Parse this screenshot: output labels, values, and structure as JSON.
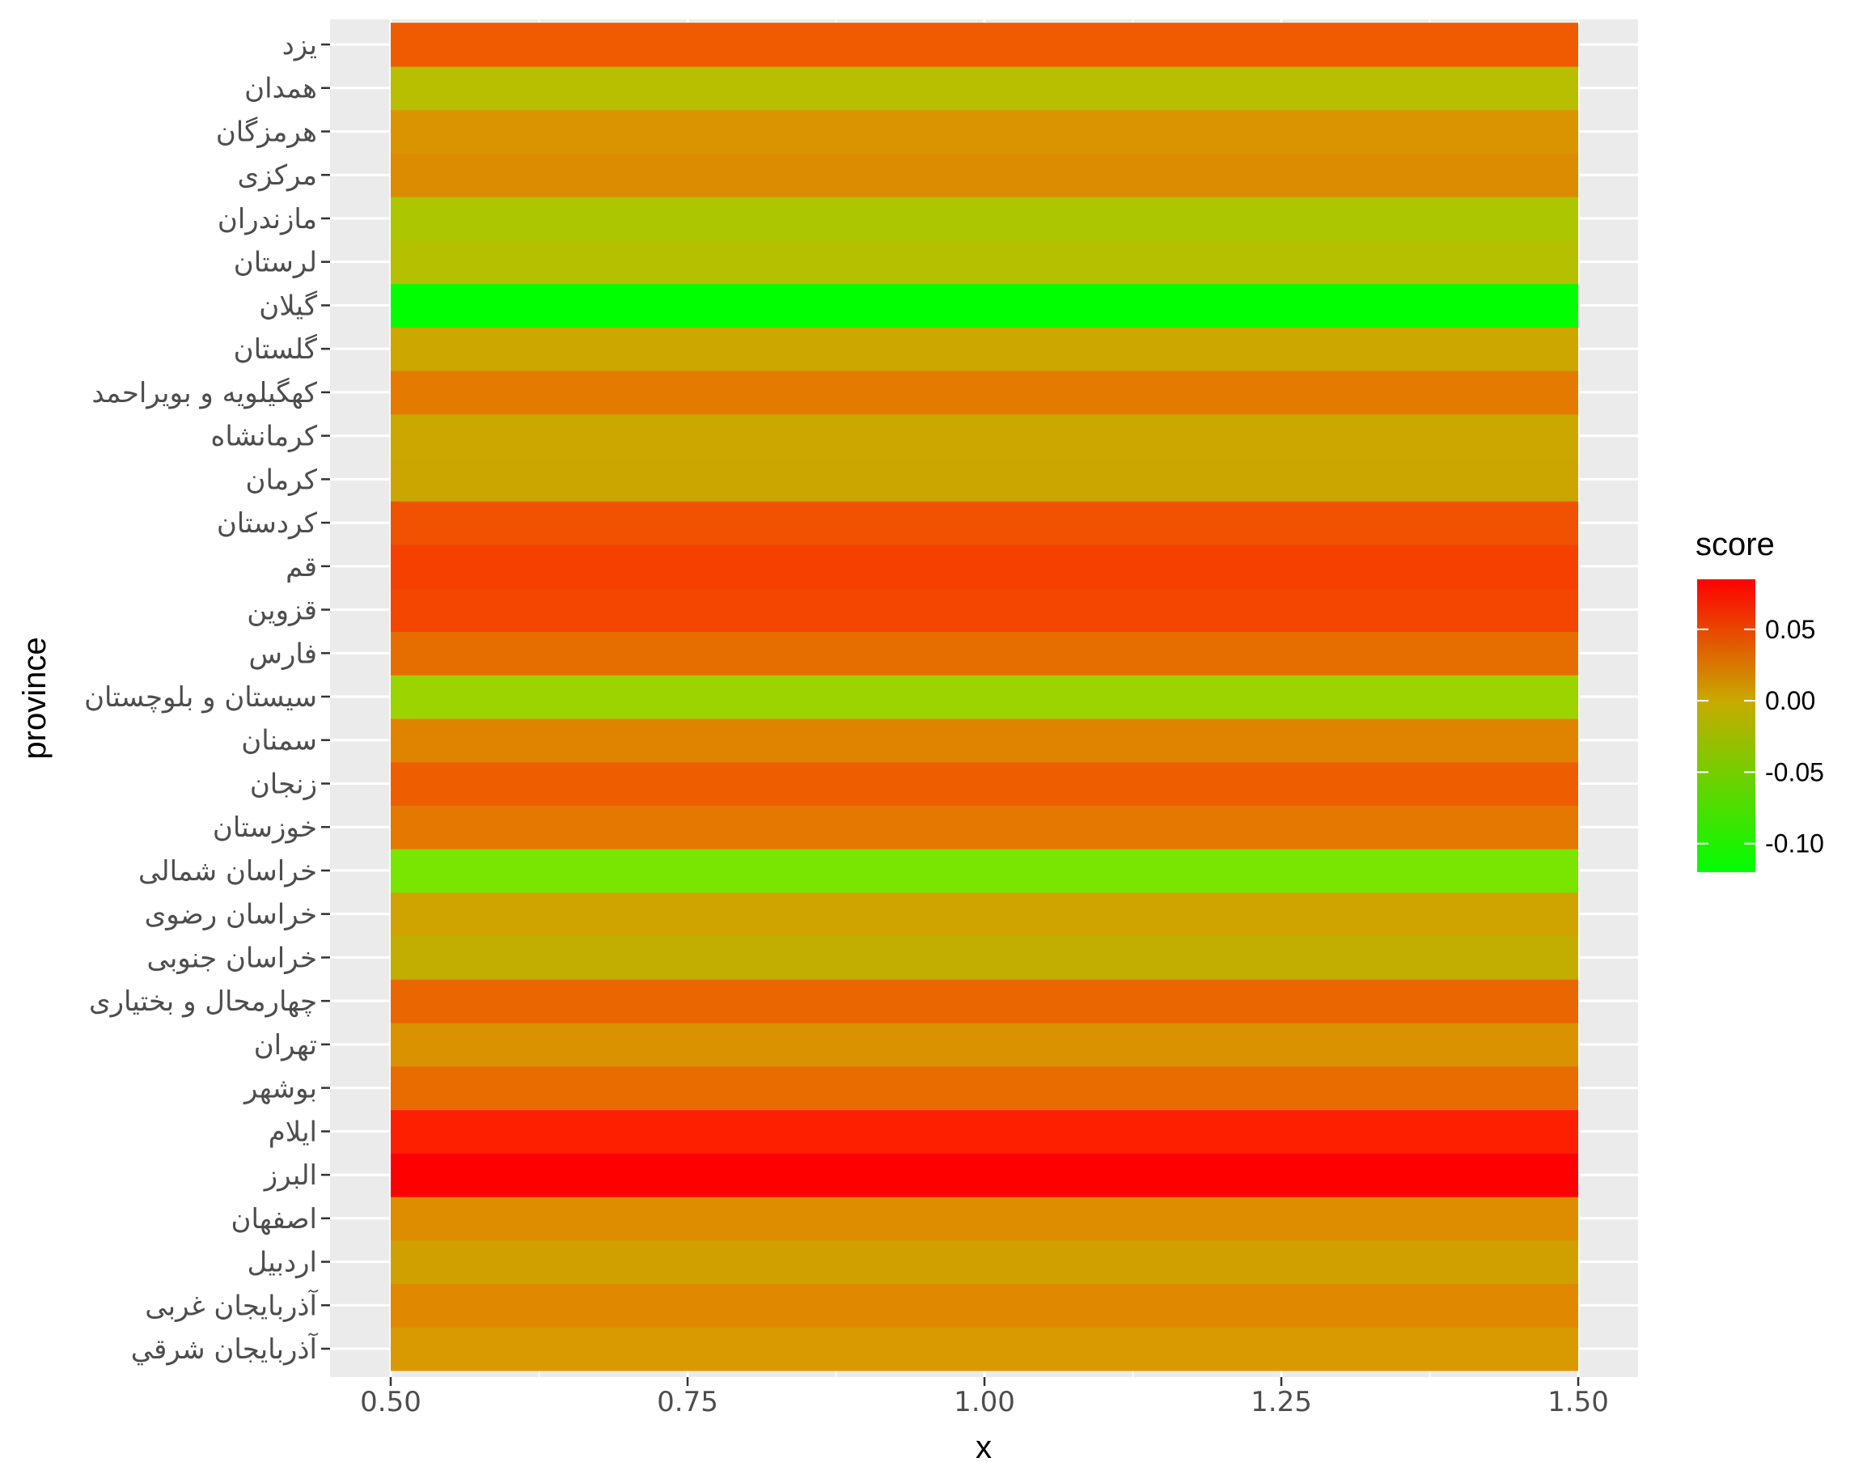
{
  "chart_data": {
    "type": "heatmap",
    "xlabel": "x",
    "ylabel": "province",
    "xlim": [
      0.5,
      1.5
    ],
    "x_ticks": [
      "0.50",
      "0.75",
      "1.00",
      "1.25",
      "1.50"
    ],
    "x_tick_values": [
      0.5,
      0.75,
      1.0,
      1.25,
      1.5
    ],
    "grid": true,
    "legend": {
      "title": "score",
      "position": "right",
      "range": [
        -0.12,
        0.085
      ],
      "ticks": [
        "0.05",
        "0.00",
        "-0.05",
        "-0.10"
      ],
      "tick_values": [
        0.05,
        0.0,
        -0.05,
        -0.1
      ],
      "low_color": "#00ff00",
      "mid_color": "#c8aa00",
      "high_color": "#ff0000"
    },
    "cells": [
      {
        "province": "آذربايجان شرقي",
        "x": 1,
        "score": 0.01,
        "color": "#d89a00"
      },
      {
        "province": "آذربایجان غربی",
        "x": 1,
        "score": 0.025,
        "color": "#e08800"
      },
      {
        "province": "اردبیل",
        "x": 1,
        "score": 0.0,
        "color": "#d0a000"
      },
      {
        "province": "اصفهان",
        "x": 1,
        "score": 0.02,
        "color": "#de8c00"
      },
      {
        "province": "البرز",
        "x": 1,
        "score": 0.085,
        "color": "#ff0000"
      },
      {
        "province": "ایلام",
        "x": 1,
        "score": 0.075,
        "color": "#fc2000"
      },
      {
        "province": "بوشهر",
        "x": 1,
        "score": 0.04,
        "color": "#e86c00"
      },
      {
        "province": "تهران",
        "x": 1,
        "score": 0.015,
        "color": "#da9200"
      },
      {
        "province": "چهارمحال و بختیاری",
        "x": 1,
        "score": 0.045,
        "color": "#ea6600"
      },
      {
        "province": "خراسان جنوبی",
        "x": 1,
        "score": -0.02,
        "color": "#c2ae00"
      },
      {
        "province": "خراسان رضوی",
        "x": 1,
        "score": 0.0,
        "color": "#cfa300"
      },
      {
        "province": "خراسان شمالی",
        "x": 1,
        "score": -0.09,
        "color": "#78e600"
      },
      {
        "province": "خوزستان",
        "x": 1,
        "score": 0.035,
        "color": "#e47800"
      },
      {
        "province": "زنجان",
        "x": 1,
        "score": 0.05,
        "color": "#ee5e00"
      },
      {
        "province": "سمنان",
        "x": 1,
        "score": 0.025,
        "color": "#e08400"
      },
      {
        "province": "سیستان و بلوچستان",
        "x": 1,
        "score": -0.065,
        "color": "#9cd400"
      },
      {
        "province": "فارس",
        "x": 1,
        "score": 0.04,
        "color": "#e66e00"
      },
      {
        "province": "قزوین",
        "x": 1,
        "score": 0.06,
        "color": "#f44600"
      },
      {
        "province": "قم",
        "x": 1,
        "score": 0.065,
        "color": "#f64000"
      },
      {
        "province": "کردستان",
        "x": 1,
        "score": 0.055,
        "color": "#f05200"
      },
      {
        "province": "کرمان",
        "x": 1,
        "score": 0.0,
        "color": "#cca600"
      },
      {
        "province": "کرمانشاه",
        "x": 1,
        "score": -0.005,
        "color": "#caa800"
      },
      {
        "province": "کهگیلویه و بویراحمد",
        "x": 1,
        "score": 0.035,
        "color": "#e47a00"
      },
      {
        "province": "گلستان",
        "x": 1,
        "score": 0.0,
        "color": "#cca700"
      },
      {
        "province": "گیلان",
        "x": 1,
        "score": -0.12,
        "color": "#00ff00"
      },
      {
        "province": "لرستان",
        "x": 1,
        "score": -0.035,
        "color": "#b4c000"
      },
      {
        "province": "مازندران",
        "x": 1,
        "score": -0.045,
        "color": "#acc600"
      },
      {
        "province": "مرکزی",
        "x": 1,
        "score": 0.02,
        "color": "#dc8c00"
      },
      {
        "province": "هرمزگان",
        "x": 1,
        "score": 0.015,
        "color": "#da9400"
      },
      {
        "province": "همدان",
        "x": 1,
        "score": -0.03,
        "color": "#b8be00"
      },
      {
        "province": "یزد",
        "x": 1,
        "score": 0.05,
        "color": "#f05a00"
      }
    ]
  }
}
